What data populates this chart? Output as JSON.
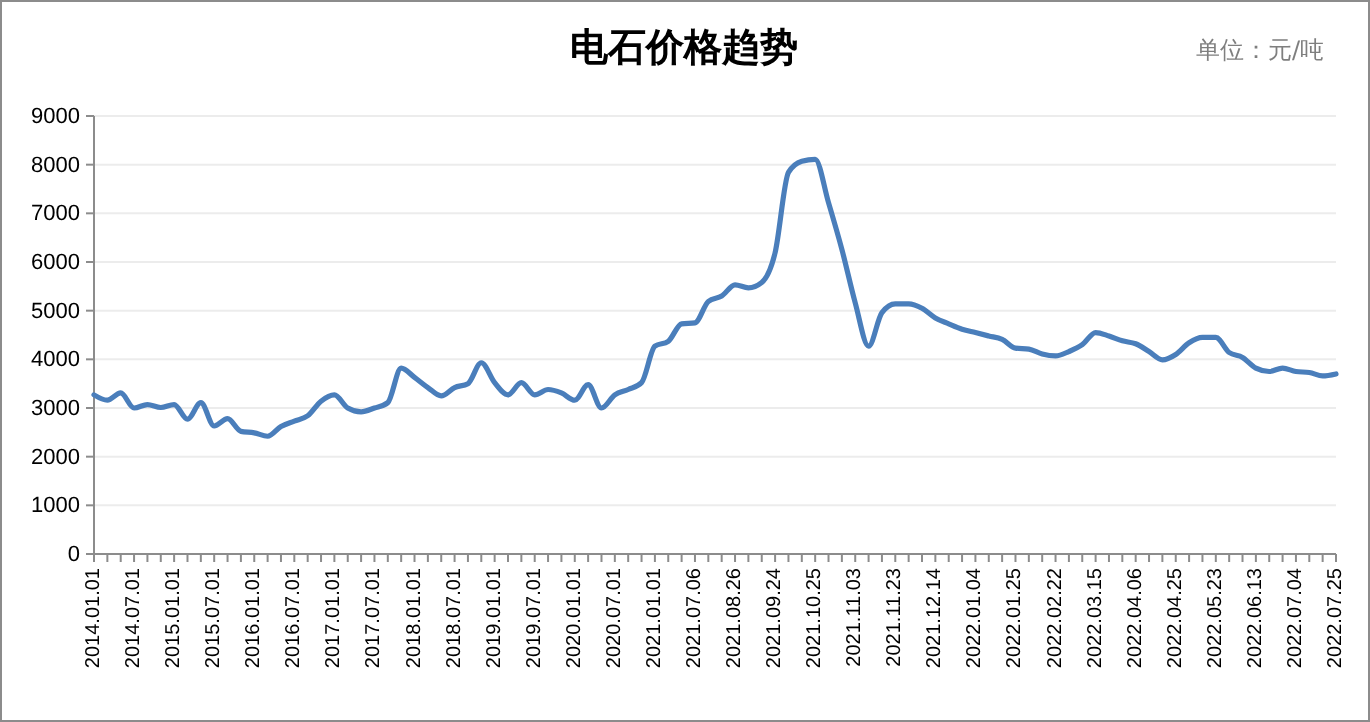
{
  "chart_data": {
    "type": "line",
    "title": "电石价格趋势",
    "annotations": [
      "单位：元/吨"
    ],
    "categories": [
      "2014.01.01",
      null,
      null,
      "2014.07.01",
      null,
      null,
      "2015.01.01",
      null,
      null,
      "2015.07.01",
      null,
      null,
      "2016.01.01",
      null,
      null,
      "2016.07.01",
      null,
      null,
      "2017.01.01",
      null,
      null,
      "2017.07.01",
      null,
      null,
      "2018.01.01",
      null,
      null,
      "2018.07.01",
      null,
      null,
      "2019.01.01",
      null,
      null,
      "2019.07.01",
      null,
      null,
      "2020.01.01",
      null,
      null,
      "2020.07.01",
      null,
      null,
      "2021.01.01",
      null,
      null,
      "2021.07.06",
      null,
      null,
      "2021.08.26",
      null,
      null,
      "2021.09.24",
      null,
      null,
      "2021.10.25",
      null,
      null,
      "2021.11.03",
      null,
      null,
      "2021.11.23",
      null,
      null,
      "2021.12.14",
      null,
      null,
      "2022.01.04",
      null,
      null,
      "2022.01.25",
      null,
      null,
      "2022.02.22",
      null,
      null,
      "2022.03.15",
      null,
      null,
      "2022.04.06",
      null,
      null,
      "2022.04.25",
      null,
      null,
      "2022.05.23",
      null,
      null,
      "2022.06.13",
      null,
      null,
      "2022.07.04",
      null,
      null,
      "2022.07.25"
    ],
    "series": [
      {
        "color": "#4a7ebb",
        "values": [
          3270,
          3160,
          3310,
          3000,
          3070,
          3010,
          3070,
          2770,
          3110,
          2630,
          2780,
          2520,
          2490,
          2420,
          2620,
          2730,
          2840,
          3140,
          3270,
          3000,
          2920,
          3000,
          3110,
          3820,
          3630,
          3420,
          3250,
          3420,
          3500,
          3930,
          3520,
          3270,
          3520,
          3270,
          3380,
          3310,
          3160,
          3480,
          3000,
          3270,
          3380,
          3520,
          4270,
          4370,
          4730,
          4750,
          5190,
          5300,
          5530,
          5470,
          5580,
          6190,
          7840,
          8070,
          8110,
          7220,
          6260,
          5160,
          4270,
          4960,
          5140,
          5140,
          5050,
          4850,
          4730,
          4620,
          4550,
          4480,
          4410,
          4230,
          4210,
          4110,
          4070,
          4160,
          4300,
          4550,
          4480,
          4380,
          4320,
          4160,
          3990,
          4100,
          4340,
          4450,
          4450,
          4140,
          4040,
          3820,
          3750,
          3820,
          3750,
          3730,
          3660,
          3700
        ]
      }
    ],
    "ylim": [
      0,
      9000
    ],
    "yticks": [
      0,
      1000,
      2000,
      3000,
      4000,
      5000,
      6000,
      7000,
      8000,
      9000
    ],
    "grid": "y",
    "marker": "none",
    "line_style": "solid"
  }
}
